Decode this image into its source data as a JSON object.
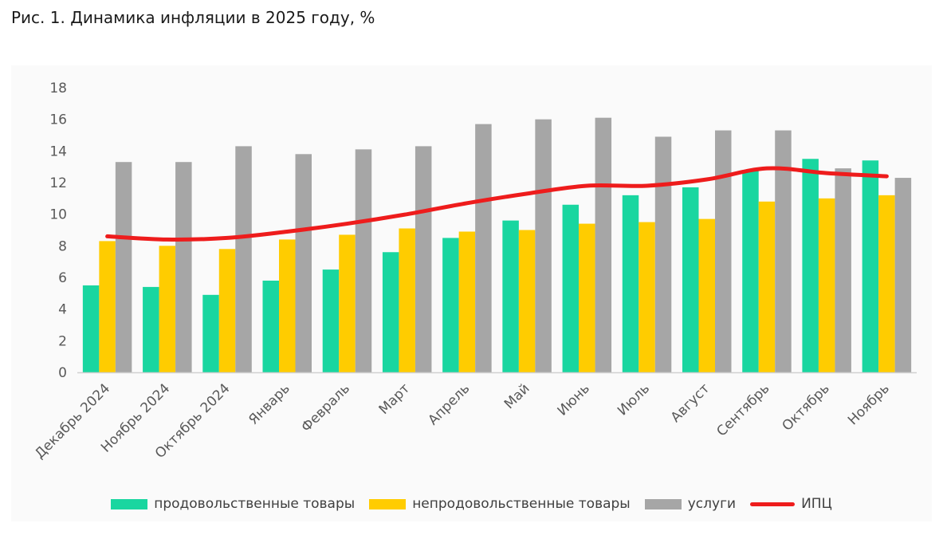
{
  "title": "Рис. 1. Динамика инфляции в 2025 году, %",
  "chart_data": {
    "type": "bar",
    "title": "Рис. 1. Динамика инфляции в 2025 году, %",
    "categories": [
      "Декабрь 2024",
      "Ноябрь 2024",
      "Октябрь 2024",
      "Январь",
      "Февраль",
      "Март",
      "Апрель",
      "Май",
      "Июнь",
      "Июль",
      "Август",
      "Сентябрь",
      "Октябрь",
      "Ноябрь"
    ],
    "ylim": [
      0,
      18
    ],
    "yticks": [
      0,
      2,
      4,
      6,
      8,
      10,
      12,
      14,
      16,
      18
    ],
    "grid": false,
    "legend_position": "bottom",
    "series": [
      {
        "name": "продовольственные товары",
        "kind": "bar",
        "color": "#19d6a0",
        "values": [
          5.5,
          5.4,
          4.9,
          5.8,
          6.5,
          7.6,
          8.5,
          9.6,
          10.6,
          11.2,
          11.7,
          12.8,
          13.5,
          13.4
        ]
      },
      {
        "name": "непродовольственные товары",
        "kind": "bar",
        "color": "#ffcc00",
        "values": [
          8.3,
          8.0,
          7.8,
          8.4,
          8.7,
          9.1,
          8.9,
          9.0,
          9.4,
          9.5,
          9.7,
          10.8,
          11.0,
          11.2
        ]
      },
      {
        "name": "услуги",
        "kind": "bar",
        "color": "#a6a6a6",
        "values": [
          13.3,
          13.3,
          14.3,
          13.8,
          14.1,
          14.3,
          15.7,
          16.0,
          16.1,
          14.9,
          15.3,
          15.3,
          12.9,
          12.3
        ]
      },
      {
        "name": "ИПЦ",
        "kind": "line",
        "color": "#ee1c1c",
        "values": [
          8.6,
          8.4,
          8.5,
          8.9,
          9.4,
          10.0,
          10.7,
          11.3,
          11.8,
          11.8,
          12.2,
          12.9,
          12.6,
          12.4
        ]
      }
    ]
  }
}
